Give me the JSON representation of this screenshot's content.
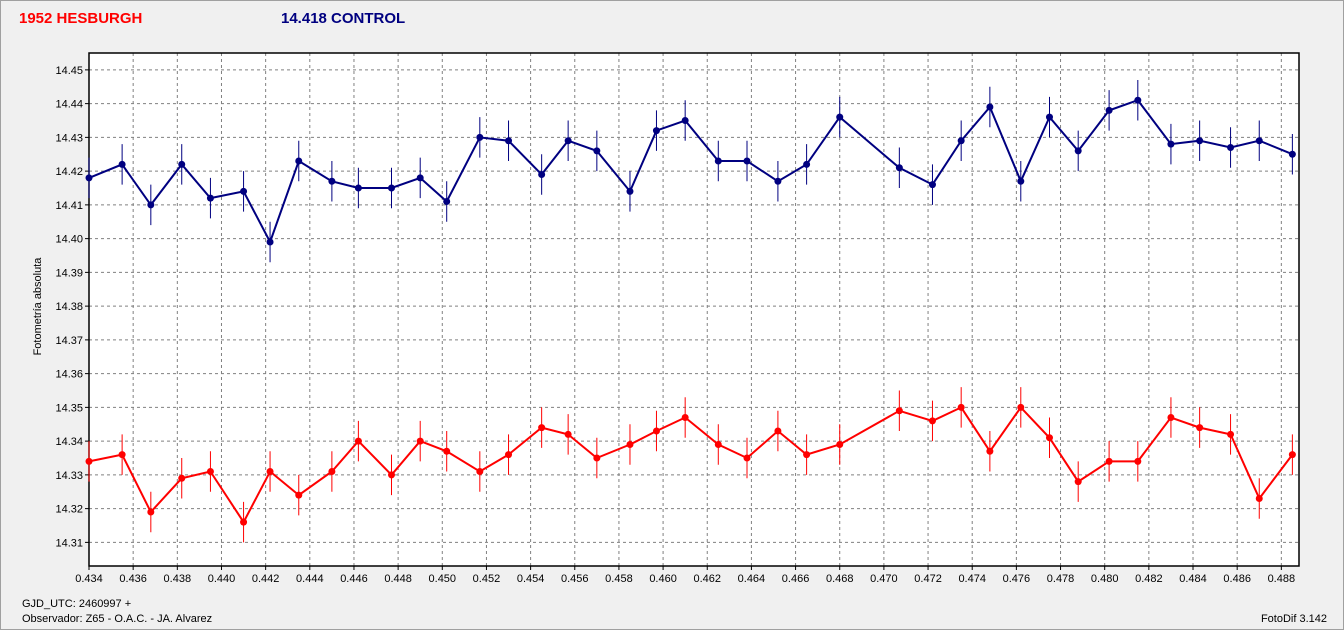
{
  "titles": {
    "target": "1952 HESBURGH",
    "control": "14.418 CONTROL"
  },
  "footer": {
    "gjd": "GJD_UTC: 2460997 +",
    "observer": "Observador: Z65 - O.A.C. - JA. Alvarez",
    "version": "FotoDif 3.142"
  },
  "colors": {
    "target": "#ff0000",
    "control": "#000080",
    "grid": "#808080",
    "background": "#ffffff"
  },
  "chart_data": {
    "type": "line",
    "ylabel": "Fotometría absoluta",
    "xlabel": "",
    "xlim": [
      0.434,
      0.4888
    ],
    "ylim": [
      14.455,
      14.303
    ],
    "y_inverted": true,
    "grid": true,
    "x_ticks": [
      "0.434",
      "0.436",
      "0.438",
      "0.440",
      "0.442",
      "0.444",
      "0.446",
      "0.448",
      "0.450",
      "0.452",
      "0.454",
      "0.456",
      "0.458",
      "0.460",
      "0.462",
      "0.464",
      "0.466",
      "0.468",
      "0.470",
      "0.472",
      "0.474",
      "0.476",
      "0.478",
      "0.480",
      "0.482",
      "0.484",
      "0.486",
      "0.488"
    ],
    "y_ticks": [
      "14.31",
      "14.32",
      "14.33",
      "14.34",
      "14.35",
      "14.36",
      "14.37",
      "14.38",
      "14.39",
      "14.40",
      "14.41",
      "14.42",
      "14.43",
      "14.44",
      "14.45"
    ],
    "error_bar": 0.006,
    "series": [
      {
        "name": "1952 HESBURGH",
        "color": "#ff0000",
        "x": [
          0.434,
          0.4355,
          0.4368,
          0.4382,
          0.4395,
          0.441,
          0.4422,
          0.4435,
          0.445,
          0.4462,
          0.4477,
          0.449,
          0.4502,
          0.4517,
          0.453,
          0.4545,
          0.4557,
          0.457,
          0.4585,
          0.4597,
          0.461,
          0.4625,
          0.4638,
          0.4652,
          0.4665,
          0.468,
          0.4707,
          0.4722,
          0.4735,
          0.4748,
          0.4762,
          0.4775,
          0.4788,
          0.4802,
          0.4815,
          0.483,
          0.4843,
          0.4857,
          0.487,
          0.4885
        ],
        "y": [
          14.334,
          14.336,
          14.319,
          14.329,
          14.331,
          14.316,
          14.331,
          14.324,
          14.331,
          14.34,
          14.33,
          14.34,
          14.337,
          14.331,
          14.336,
          14.344,
          14.342,
          14.335,
          14.339,
          14.343,
          14.347,
          14.339,
          14.335,
          14.343,
          14.336,
          14.339,
          14.349,
          14.346,
          14.35,
          14.337,
          14.35,
          14.341,
          14.328,
          14.334,
          14.334,
          14.347,
          14.344,
          14.342,
          14.323,
          14.336
        ]
      },
      {
        "name": "14.418 CONTROL",
        "color": "#000080",
        "x": [
          0.434,
          0.4355,
          0.4368,
          0.4382,
          0.4395,
          0.441,
          0.4422,
          0.4435,
          0.445,
          0.4462,
          0.4477,
          0.449,
          0.4502,
          0.4517,
          0.453,
          0.4545,
          0.4557,
          0.457,
          0.4585,
          0.4597,
          0.461,
          0.4625,
          0.4638,
          0.4652,
          0.4665,
          0.468,
          0.4707,
          0.4722,
          0.4735,
          0.4748,
          0.4762,
          0.4775,
          0.4788,
          0.4802,
          0.4815,
          0.483,
          0.4843,
          0.4857,
          0.487,
          0.4885
        ],
        "y": [
          14.418,
          14.422,
          14.41,
          14.422,
          14.412,
          14.414,
          14.399,
          14.423,
          14.417,
          14.415,
          14.415,
          14.418,
          14.411,
          14.43,
          14.429,
          14.419,
          14.429,
          14.426,
          14.414,
          14.432,
          14.435,
          14.423,
          14.423,
          14.417,
          14.422,
          14.436,
          14.421,
          14.416,
          14.429,
          14.439,
          14.417,
          14.436,
          14.426,
          14.438,
          14.441,
          14.428,
          14.429,
          14.427,
          14.429,
          14.425
        ]
      }
    ]
  }
}
